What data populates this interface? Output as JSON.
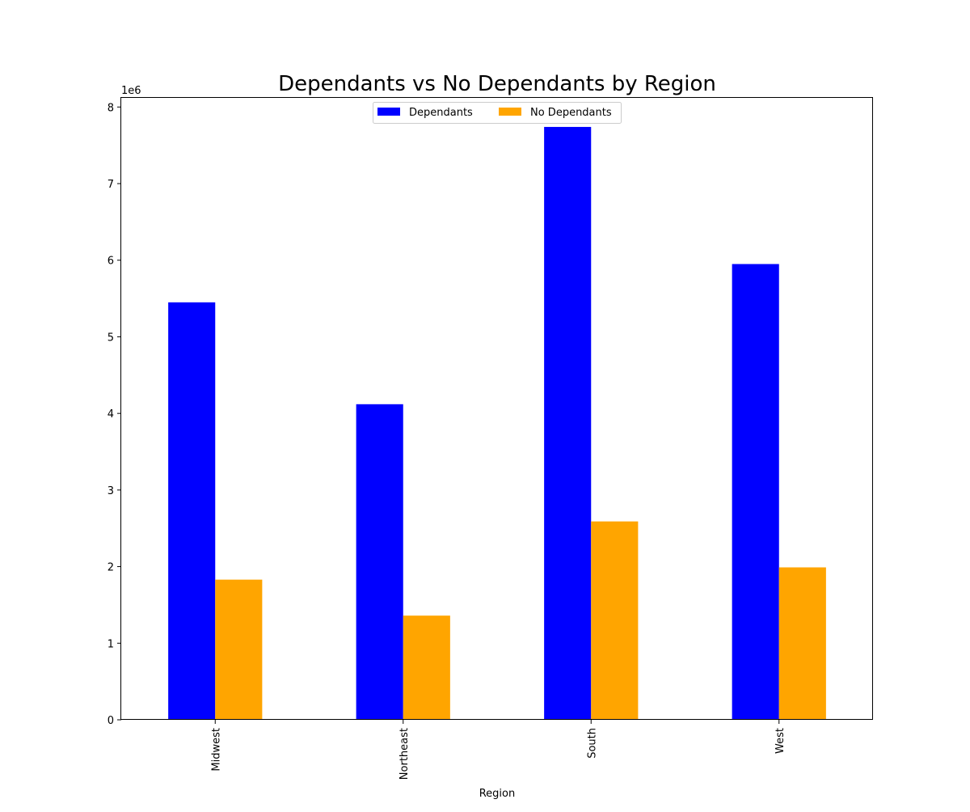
{
  "chart_data": {
    "type": "bar",
    "title": "Dependants vs No Dependants by Region",
    "xlabel": "Region",
    "ylabel": "",
    "categories": [
      "Midwest",
      "Northeast",
      "South",
      "West"
    ],
    "series": [
      {
        "name": "Dependants",
        "color": "#0000ff",
        "values": [
          5450000,
          4120000,
          7740000,
          5950000
        ]
      },
      {
        "name": "No Dependants",
        "color": "#ffa500",
        "values": [
          1830000,
          1360000,
          2590000,
          1990000
        ]
      }
    ],
    "ylim": [
      0,
      8130000
    ],
    "yticks": [
      0,
      1,
      2,
      3,
      4,
      5,
      6,
      7,
      8
    ],
    "y_scale_factor": 1000000,
    "y_offset_label": "1e6",
    "x_tick_rotation": "vertical",
    "grid": false,
    "legend": {
      "placement": "upper-center",
      "columns": 2
    }
  }
}
